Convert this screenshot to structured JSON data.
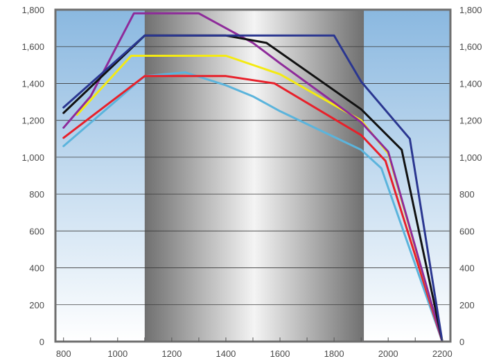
{
  "chart_data": {
    "type": "line",
    "title": "",
    "xlabel": "",
    "ylabel": "",
    "xlim": [
      770,
      2230
    ],
    "ylim": [
      0,
      1800
    ],
    "x_ticks": [
      800,
      1000,
      1200,
      1400,
      1600,
      1800,
      2000,
      2200
    ],
    "x_tick_labels": [
      "800",
      "1000",
      "1200",
      "1400",
      "1600",
      "1800",
      "2000",
      "2200"
    ],
    "x_minor_ticks": [
      900,
      1100,
      1300,
      1500,
      1700,
      1900,
      2100
    ],
    "y_ticks": [
      0,
      200,
      400,
      600,
      800,
      1000,
      1200,
      1400,
      1600,
      1800
    ],
    "y_tick_labels": [
      "0",
      "200",
      "400",
      "600",
      "800",
      "1,000",
      "1,200",
      "1,400",
      "1,600",
      "1,800"
    ],
    "grid": true,
    "highlight_band": [
      1100,
      1910
    ],
    "colors": {
      "plot_top": "#8ab8e0",
      "plot_bottom": "#ffffff",
      "band_edge": "#707070",
      "band_center": "#f4f4f4",
      "frame": "#6e6e6e",
      "grid": "#3a3a3a"
    },
    "series": [
      {
        "color": "#5bb4dc",
        "points": [
          [
            800,
            1060
          ],
          [
            1100,
            1440
          ],
          [
            1250,
            1460
          ],
          [
            1400,
            1390
          ],
          [
            1500,
            1330
          ],
          [
            1600,
            1250
          ],
          [
            1800,
            1110
          ],
          [
            1900,
            1040
          ],
          [
            1975,
            940
          ],
          [
            2200,
            0
          ]
        ]
      },
      {
        "color": "#e8202a",
        "points": [
          [
            800,
            1105
          ],
          [
            1100,
            1440
          ],
          [
            1400,
            1440
          ],
          [
            1580,
            1400
          ],
          [
            1900,
            1120
          ],
          [
            1990,
            980
          ],
          [
            2200,
            0
          ]
        ]
      },
      {
        "color": "#f4ea12",
        "points": [
          [
            850,
            1230
          ],
          [
            1050,
            1550
          ],
          [
            1400,
            1550
          ],
          [
            1600,
            1450
          ],
          [
            1900,
            1200
          ],
          [
            2000,
            1020
          ],
          [
            2200,
            0
          ]
        ]
      },
      {
        "color": "#8e2a9a",
        "points": [
          [
            800,
            1160
          ],
          [
            900,
            1330
          ],
          [
            1060,
            1780
          ],
          [
            1300,
            1780
          ],
          [
            1500,
            1620
          ],
          [
            1600,
            1510
          ],
          [
            1900,
            1190
          ],
          [
            2000,
            1030
          ],
          [
            2200,
            0
          ]
        ]
      },
      {
        "color": "#111111",
        "points": [
          [
            800,
            1240
          ],
          [
            1100,
            1660
          ],
          [
            1400,
            1660
          ],
          [
            1550,
            1620
          ],
          [
            1900,
            1260
          ],
          [
            2050,
            1040
          ],
          [
            2200,
            0
          ]
        ]
      },
      {
        "color": "#2a3690",
        "points": [
          [
            800,
            1270
          ],
          [
            1100,
            1660
          ],
          [
            1800,
            1660
          ],
          [
            1900,
            1410
          ],
          [
            2080,
            1100
          ],
          [
            2200,
            0
          ]
        ]
      }
    ]
  }
}
